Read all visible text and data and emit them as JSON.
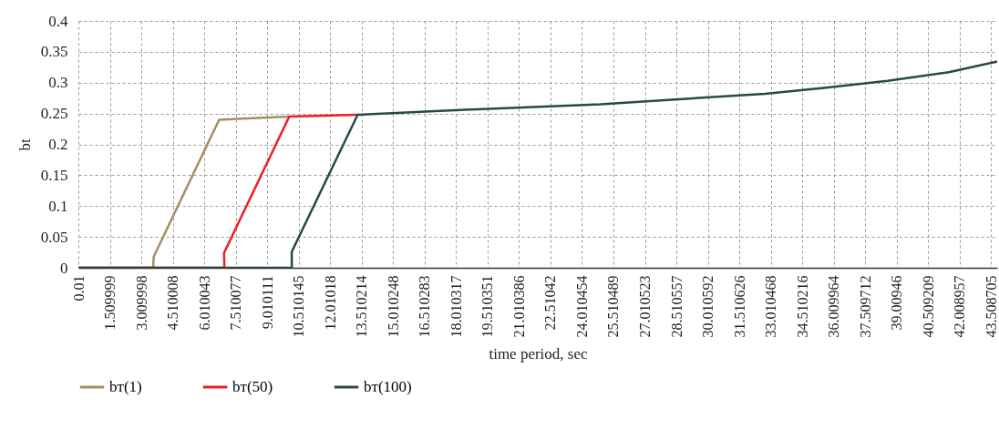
{
  "chart_data": {
    "type": "line",
    "xlabel": "time period, sec",
    "ylabel": "bt",
    "xlim": [
      0.01,
      43.8
    ],
    "xticks": [
      0.01,
      1.509999,
      3.009998,
      4.510008,
      6.010043,
      7.510077,
      9.010111,
      10.510145,
      12.01018,
      13.510214,
      15.010248,
      16.510283,
      18.010317,
      19.510351,
      21.010386,
      22.51042,
      24.010454,
      25.510489,
      27.010523,
      28.510557,
      30.010592,
      31.510626,
      33.010468,
      34.510216,
      36.009964,
      37.509712,
      39.00946,
      40.509209,
      42.008957,
      43.508705
    ],
    "ylim": [
      0,
      0.4
    ],
    "yticks": [
      0,
      0.05,
      0.1,
      0.15,
      0.2,
      0.25,
      0.3,
      0.35,
      0.4
    ],
    "grid": true,
    "legend": "bottom",
    "marker": "none",
    "line_style": "solid",
    "series": [
      {
        "name": "bт(1)",
        "color": "#a58e64",
        "x": [
          0.01,
          3.57,
          3.6,
          6.72,
          10.06
        ],
        "values": [
          0,
          0,
          0.018,
          0.24,
          0.245
        ]
      },
      {
        "name": "bт(50)",
        "color": "#ee1c24",
        "x": [
          0.01,
          6.97,
          6.95,
          10.06,
          13.32
        ],
        "values": [
          0,
          0,
          0.024,
          0.245,
          0.248
        ]
      },
      {
        "name": "bт(100)",
        "color": "#264a45",
        "x": [
          0.01,
          10.18,
          10.18,
          13.32,
          19.03,
          24.89,
          32.73,
          35.65,
          38.58,
          41.5,
          43.76
        ],
        "values": [
          0,
          0,
          0.026,
          0.248,
          0.257,
          0.265,
          0.282,
          0.292,
          0.303,
          0.317,
          0.334
        ]
      }
    ]
  }
}
